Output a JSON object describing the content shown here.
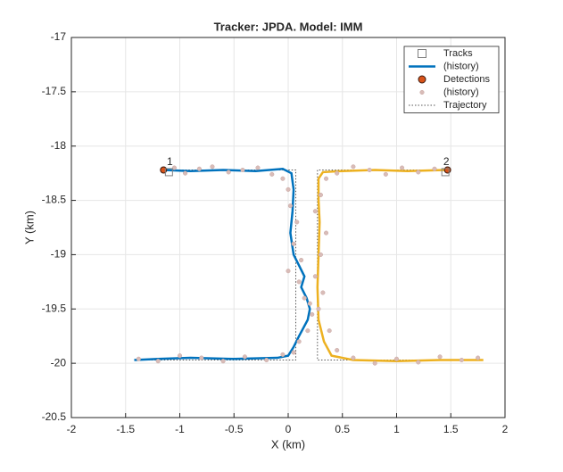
{
  "chart_data": {
    "type": "scatter",
    "title": "Tracker: JPDA. Model: IMM",
    "xlabel": "X (km)",
    "ylabel": "Y (km)",
    "xlim": [
      -2,
      2
    ],
    "ylim": [
      -20.5,
      -17
    ],
    "xticks": [
      -2,
      -1.5,
      -1,
      -0.5,
      0,
      0.5,
      1,
      1.5,
      2
    ],
    "yticks": [
      -20.5,
      -20,
      -19.5,
      -19,
      -18.5,
      -18,
      -17.5,
      -17
    ],
    "grid": true,
    "legend": "upper right",
    "series": [
      {
        "name": "Tracks",
        "style": "square",
        "color": "#808080",
        "x": [
          -1.1,
          1.45
        ],
        "y": [
          -18.24,
          -18.24
        ],
        "labels": [
          "1",
          "2"
        ]
      },
      {
        "name": "(history)",
        "style": "line",
        "color": "#0072bd",
        "lines": [
          {
            "color": "#0072bd",
            "x": [
              -1.15,
              -0.9,
              -0.6,
              -0.3,
              -0.05,
              0.03,
              0.05,
              0.04,
              0.02,
              0.05,
              0.1,
              0.15,
              0.12,
              0.17,
              0.2,
              0.18,
              0.1,
              0.05,
              0,
              -0.1,
              -0.5,
              -0.9,
              -1.2,
              -1.42
            ],
            "y": [
              -18.22,
              -18.23,
              -18.22,
              -18.23,
              -18.21,
              -18.25,
              -18.4,
              -18.6,
              -18.8,
              -19.0,
              -19.1,
              -19.2,
              -19.3,
              -19.4,
              -19.5,
              -19.6,
              -19.75,
              -19.85,
              -19.93,
              -19.95,
              -19.96,
              -19.95,
              -19.96,
              -19.97
            ]
          },
          {
            "color": "#edb120",
            "x": [
              1.45,
              1.1,
              0.8,
              0.5,
              0.32,
              0.28,
              0.28,
              0.29,
              0.28,
              0.27,
              0.28,
              0.33,
              0.4,
              0.6,
              1.0,
              1.4,
              1.8
            ],
            "y": [
              -18.22,
              -18.23,
              -18.22,
              -18.23,
              -18.24,
              -18.3,
              -18.5,
              -18.7,
              -19.0,
              -19.3,
              -19.6,
              -19.8,
              -19.93,
              -19.97,
              -19.98,
              -19.97,
              -19.97
            ]
          }
        ]
      },
      {
        "name": "Detections",
        "style": "dot",
        "color": "#d95319",
        "x": [
          -1.15,
          1.47
        ],
        "y": [
          -18.22,
          -18.22
        ]
      },
      {
        "name": "(history)",
        "style": "smalldot",
        "color": "#d9bcb8",
        "x": [
          -1.05,
          -0.95,
          -0.82,
          -0.7,
          -0.55,
          -0.42,
          -0.28,
          -0.15,
          -0.05,
          0.0,
          0.02,
          0.08,
          0.05,
          0.12,
          0.0,
          0.1,
          0.15,
          0.2,
          0.22,
          0.18,
          0.1,
          0.05,
          -0.05,
          -0.2,
          -0.4,
          -0.6,
          -0.8,
          -1.0,
          -1.2,
          -1.38,
          1.35,
          1.2,
          1.05,
          0.9,
          0.75,
          0.6,
          0.45,
          0.35,
          0.3,
          0.25,
          0.35,
          0.3,
          0.25,
          0.32,
          0.28,
          0.38,
          0.45,
          0.6,
          0.8,
          1.0,
          1.2,
          1.4,
          1.6,
          1.75
        ],
        "y": [
          -18.2,
          -18.25,
          -18.21,
          -18.19,
          -18.24,
          -18.22,
          -18.2,
          -18.26,
          -18.3,
          -18.4,
          -18.55,
          -18.7,
          -18.9,
          -19.05,
          -19.15,
          -19.25,
          -19.4,
          -19.45,
          -19.55,
          -19.7,
          -19.8,
          -19.9,
          -19.92,
          -19.97,
          -19.94,
          -19.98,
          -19.95,
          -19.93,
          -19.98,
          -19.96,
          -18.21,
          -18.24,
          -18.2,
          -18.26,
          -18.22,
          -18.19,
          -18.25,
          -18.3,
          -18.45,
          -18.6,
          -18.8,
          -19.0,
          -19.2,
          -19.35,
          -19.5,
          -19.7,
          -19.88,
          -19.95,
          -20.0,
          -19.96,
          -19.99,
          -19.94,
          -19.97,
          -19.95
        ]
      },
      {
        "name": "Trajectory",
        "style": "dotted",
        "color": "#555555",
        "lines": [
          {
            "color": "#555555",
            "x": [
              -1.15,
              0.07,
              0.07,
              -1.42
            ],
            "y": [
              -18.22,
              -18.22,
              -19.97,
              -19.97
            ]
          },
          {
            "color": "#555555",
            "x": [
              1.45,
              0.27,
              0.27,
              1.8
            ],
            "y": [
              -18.22,
              -18.22,
              -19.97,
              -19.97
            ]
          }
        ]
      }
    ]
  }
}
